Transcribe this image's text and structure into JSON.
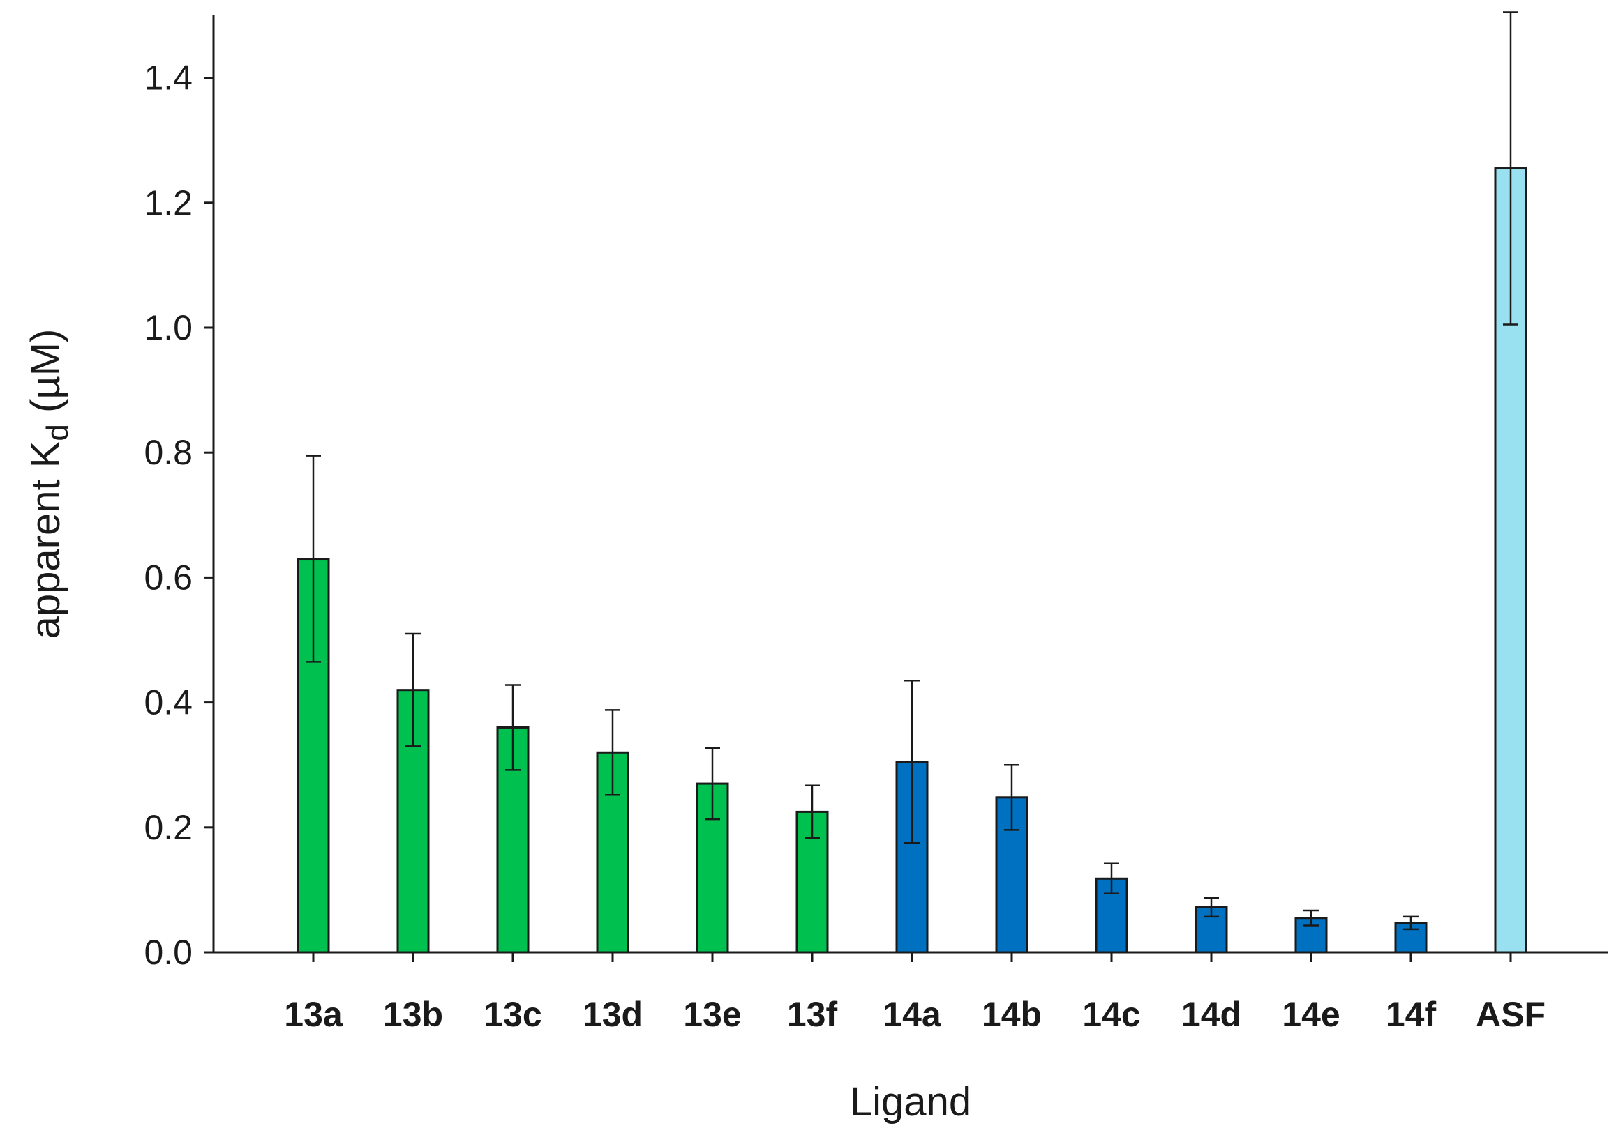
{
  "chart_data": {
    "type": "bar",
    "xlabel": "Ligand",
    "ylabel_main": "apparent K",
    "ylabel_sub": "d",
    "ylabel_unit": " (µM)",
    "ylim": [
      0,
      1.5
    ],
    "yticks": [
      "0.0",
      "0.2",
      "0.4",
      "0.6",
      "0.8",
      "1.0",
      "1.2",
      "1.4"
    ],
    "grid": false,
    "categories": [
      "13a",
      "13b",
      "13c",
      "13d",
      "13e",
      "13f",
      "14a",
      "14b",
      "14c",
      "14d",
      "14e",
      "14f",
      "ASF"
    ],
    "values": [
      0.63,
      0.42,
      0.36,
      0.32,
      0.27,
      0.225,
      0.305,
      0.248,
      0.118,
      0.072,
      0.055,
      0.047,
      1.255
    ],
    "errors": [
      0.165,
      0.09,
      0.068,
      0.068,
      0.057,
      0.042,
      0.13,
      0.052,
      0.024,
      0.015,
      0.012,
      0.01,
      0.25
    ],
    "colors": [
      "#00c050",
      "#00c050",
      "#00c050",
      "#00c050",
      "#00c050",
      "#00c050",
      "#0070c0",
      "#0070c0",
      "#0070c0",
      "#0070c0",
      "#0070c0",
      "#0070c0",
      "#99e1f0"
    ]
  }
}
